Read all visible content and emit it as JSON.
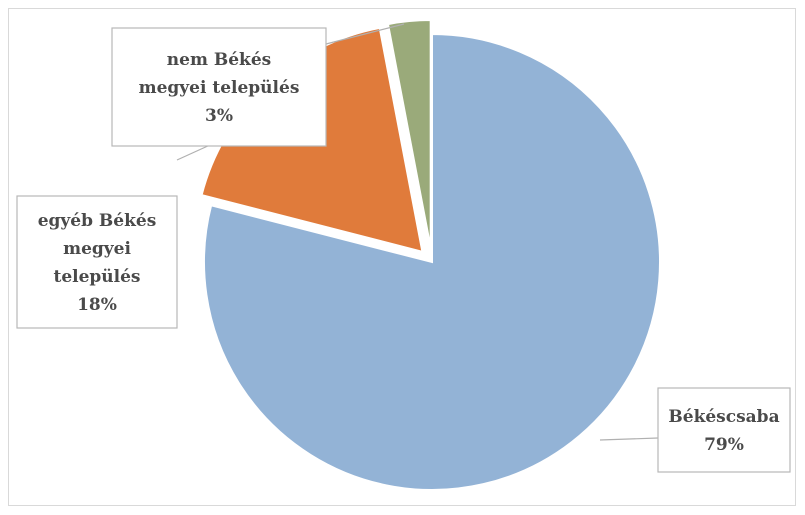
{
  "chart_data": {
    "type": "pie",
    "slices": [
      {
        "label_lines": [
          "Békéscsaba"
        ],
        "pct_label": "79%",
        "value": 79,
        "color": "#93b3d6"
      },
      {
        "label_lines": [
          "egyéb Békés",
          "megyei",
          "település"
        ],
        "pct_label": "18%",
        "value": 18,
        "color": "#e07b3b"
      },
      {
        "label_lines": [
          "nem Békés",
          "megyei település"
        ],
        "pct_label": "3%",
        "value": 3,
        "color": "#9aaa7a"
      }
    ],
    "exploded": true,
    "legend": "none",
    "data_labels": "callout boxes"
  }
}
